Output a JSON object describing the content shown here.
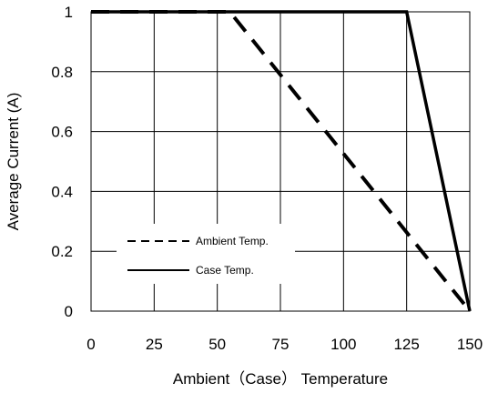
{
  "chart_data": {
    "type": "line",
    "xlabel": "Ambient（Case） Temperature",
    "ylabel": "Average Current (A)",
    "xlim": [
      0,
      150
    ],
    "ylim": [
      0,
      1
    ],
    "x_ticks": [
      0,
      25,
      50,
      75,
      100,
      125,
      150
    ],
    "y_ticks": [
      0,
      0.2,
      0.4,
      0.6,
      0.8,
      1
    ],
    "y_tick_labels": [
      "0",
      "0.2",
      "0.4",
      "0.6",
      "0.8",
      "1"
    ],
    "grid": true,
    "legend_position": "bottom-left",
    "series": [
      {
        "name": "Ambient Temp.",
        "style": "dashed",
        "color": "#000000",
        "points": [
          [
            0,
            1
          ],
          [
            55,
            1
          ],
          [
            150,
            0
          ]
        ]
      },
      {
        "name": "Case Temp.",
        "style": "solid",
        "color": "#000000",
        "points": [
          [
            0,
            1
          ],
          [
            125,
            1
          ],
          [
            150,
            0
          ]
        ]
      }
    ]
  }
}
